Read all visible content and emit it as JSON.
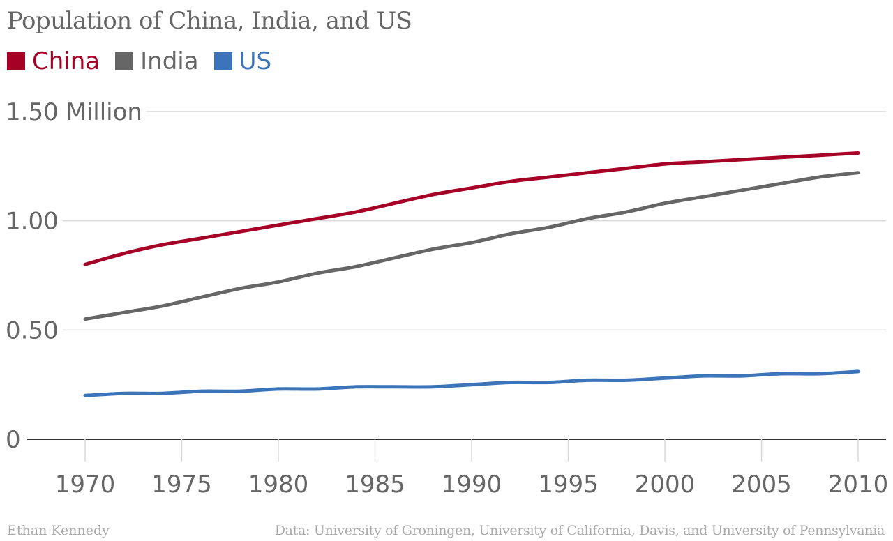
{
  "chart_data": {
    "type": "line",
    "title": "Population of China, India, and US",
    "xlabel": "",
    "ylabel": "",
    "ylim": [
      0,
      1.5
    ],
    "xlim": [
      1970,
      2010
    ],
    "y_ticks": [
      {
        "value": 1.5,
        "label": "1.50 Million"
      },
      {
        "value": 1.0,
        "label": "1.00"
      },
      {
        "value": 0.5,
        "label": "0.50"
      },
      {
        "value": 0,
        "label": "0"
      }
    ],
    "x_ticks": [
      {
        "value": 1970,
        "label": "1970"
      },
      {
        "value": 1975,
        "label": "1975"
      },
      {
        "value": 1980,
        "label": "1980"
      },
      {
        "value": 1985,
        "label": "1985"
      },
      {
        "value": 1990,
        "label": "1990"
      },
      {
        "value": 1995,
        "label": "1995"
      },
      {
        "value": 2000,
        "label": "2000"
      },
      {
        "value": 2005,
        "label": "2005"
      },
      {
        "value": 2010,
        "label": "2010"
      }
    ],
    "grid": "horizontal",
    "legend": "top-left",
    "x": [
      1970,
      1972,
      1974,
      1976,
      1978,
      1980,
      1982,
      1984,
      1986,
      1988,
      1990,
      1992,
      1994,
      1996,
      1998,
      2000,
      2002,
      2004,
      2006,
      2008,
      2010
    ],
    "series": [
      {
        "name": "China",
        "color": "#a50026",
        "values": [
          0.8,
          0.85,
          0.89,
          0.92,
          0.95,
          0.98,
          1.01,
          1.04,
          1.08,
          1.12,
          1.15,
          1.18,
          1.2,
          1.22,
          1.24,
          1.26,
          1.27,
          1.28,
          1.29,
          1.3,
          1.31
        ]
      },
      {
        "name": "India",
        "color": "#666666",
        "values": [
          0.55,
          0.58,
          0.61,
          0.65,
          0.69,
          0.72,
          0.76,
          0.79,
          0.83,
          0.87,
          0.9,
          0.94,
          0.97,
          1.01,
          1.04,
          1.08,
          1.11,
          1.14,
          1.17,
          1.2,
          1.22
        ]
      },
      {
        "name": "US",
        "color": "#3c74b9",
        "values": [
          0.2,
          0.21,
          0.21,
          0.22,
          0.22,
          0.23,
          0.23,
          0.24,
          0.24,
          0.24,
          0.25,
          0.26,
          0.26,
          0.27,
          0.27,
          0.28,
          0.29,
          0.29,
          0.3,
          0.3,
          0.31
        ]
      }
    ]
  },
  "footer": {
    "author": "Ethan Kennedy",
    "source": "Data: University of Groningen, University of California, Davis, and University of Pennsylvania"
  },
  "colors": {
    "axis": "#333333",
    "grid": "#d9d9d9",
    "tick_label": "#666666"
  }
}
